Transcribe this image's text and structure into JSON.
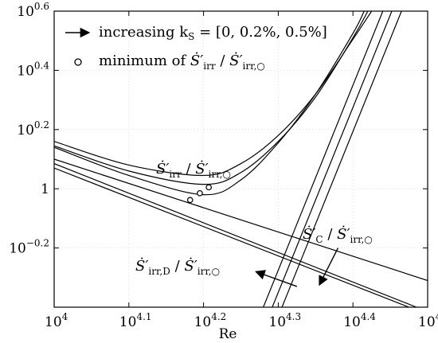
{
  "chart_data": {
    "type": "line",
    "x_scale": "log10",
    "y_scale": "log10",
    "xlim_log10": [
      4.0,
      4.5
    ],
    "ylim_log10": [
      -0.4,
      0.6
    ],
    "xlabel": "Re",
    "ylabel": "",
    "grid": "dotted, light",
    "x_ticks": [
      {
        "base": "10",
        "exp": "4",
        "log10": 4.0
      },
      {
        "base": "10",
        "exp": "4.1",
        "log10": 4.1
      },
      {
        "base": "10",
        "exp": "4.2",
        "log10": 4.2
      },
      {
        "base": "10",
        "exp": "4.3",
        "log10": 4.3
      },
      {
        "base": "10",
        "exp": "4.4",
        "log10": 4.4
      },
      {
        "base": "10",
        "exp": "4.5",
        "log10": 4.5
      }
    ],
    "y_ticks": [
      {
        "base": "10",
        "exp": "−0.2",
        "log10": -0.2
      },
      {
        "base": "1",
        "exp": "",
        "log10": 0.0
      },
      {
        "base": "10",
        "exp": "0.2",
        "log10": 0.2
      },
      {
        "base": "10",
        "exp": "0.4",
        "log10": 0.4
      },
      {
        "base": "10",
        "exp": "0.6",
        "log10": 0.6
      }
    ],
    "legend": {
      "placement": "top-left",
      "entries": [
        {
          "symbol": "arrow",
          "label_prefix": "increasing k",
          "label_sub": "S",
          "label_suffix": " = [0, 0.2%, 0.5%]"
        },
        {
          "symbol": "circle",
          "label_prefix": "minimum of ",
          "label_math": "Ṡ′irr / Ṡ′irr,○"
        }
      ]
    },
    "ks_values_percent": [
      0,
      0.2,
      0.5
    ],
    "series": [
      {
        "group": "Ṡ′irr / Ṡ′irr,○",
        "points": [
          {
            "x": 4.0,
            "y": 0.14
          },
          {
            "x": 4.1,
            "y": 0.045
          },
          {
            "x": 4.2,
            "y": -0.02
          },
          {
            "x": 4.25,
            "y": 0.03
          },
          {
            "x": 4.3,
            "y": 0.155
          },
          {
            "x": 4.35,
            "y": 0.32
          },
          {
            "x": 4.4,
            "y": 0.525
          },
          {
            "x": 4.415,
            "y": 0.6
          }
        ]
      },
      {
        "group": "Ṡ′irr / Ṡ′irr,○",
        "points": [
          {
            "x": 4.0,
            "y": 0.145
          },
          {
            "x": 4.1,
            "y": 0.06
          },
          {
            "x": 4.2,
            "y": 0.015
          },
          {
            "x": 4.25,
            "y": 0.055
          },
          {
            "x": 4.3,
            "y": 0.16
          },
          {
            "x": 4.35,
            "y": 0.31
          },
          {
            "x": 4.4,
            "y": 0.51
          },
          {
            "x": 4.42,
            "y": 0.6
          }
        ]
      },
      {
        "group": "Ṡ′irr / Ṡ′irr,○",
        "points": [
          {
            "x": 4.0,
            "y": 0.16
          },
          {
            "x": 4.1,
            "y": 0.08
          },
          {
            "x": 4.2,
            "y": 0.045
          },
          {
            "x": 4.25,
            "y": 0.085
          },
          {
            "x": 4.3,
            "y": 0.18
          },
          {
            "x": 4.35,
            "y": 0.32
          },
          {
            "x": 4.4,
            "y": 0.505
          },
          {
            "x": 4.425,
            "y": 0.6
          }
        ]
      },
      {
        "group": "Ṡ′C / Ṡ′irr,○",
        "points": [
          {
            "x": 4.28,
            "y": -0.4
          },
          {
            "x": 4.44,
            "y": 0.6
          }
        ]
      },
      {
        "group": "Ṡ′C / Ṡ′irr,○",
        "points": [
          {
            "x": 4.292,
            "y": -0.4
          },
          {
            "x": 4.452,
            "y": 0.6
          }
        ]
      },
      {
        "group": "Ṡ′C / Ṡ′irr,○",
        "points": [
          {
            "x": 4.305,
            "y": -0.4
          },
          {
            "x": 4.465,
            "y": 0.6
          }
        ]
      },
      {
        "group": "Ṡ′irr,D / Ṡ′irr,○",
        "points": [
          {
            "x": 4.0,
            "y": 0.1
          },
          {
            "x": 4.5,
            "y": -0.31
          }
        ]
      },
      {
        "group": "Ṡ′irr,D / Ṡ′irr,○",
        "points": [
          {
            "x": 4.0,
            "y": 0.085
          },
          {
            "x": 4.485,
            "y": -0.4
          }
        ]
      },
      {
        "group": "Ṡ′irr,D / Ṡ′irr,○",
        "points": [
          {
            "x": 4.0,
            "y": 0.07
          },
          {
            "x": 4.475,
            "y": -0.4
          }
        ]
      }
    ],
    "minima_markers": [
      {
        "x": 4.182,
        "y": -0.038
      },
      {
        "x": 4.195,
        "y": -0.015
      },
      {
        "x": 4.207,
        "y": 0.005
      }
    ],
    "annotations": [
      {
        "id": "irr",
        "math": "Ṡ′irr / Ṡ′irr,○",
        "pos": "above-curves-middle"
      },
      {
        "id": "c",
        "math": "Ṡ′C / Ṡ′irr,○",
        "pos": "right-lower"
      },
      {
        "id": "d",
        "math": "Ṡ′irr,D / Ṡ′irr,○",
        "pos": "left-lower"
      }
    ],
    "arrows": [
      {
        "id": "c-arrow",
        "from": {
          "x": 4.38,
          "y": -0.2
        },
        "to": {
          "x": 4.355,
          "y": -0.325
        }
      },
      {
        "id": "d-arrow",
        "from": {
          "x": 4.325,
          "y": -0.33
        },
        "to": {
          "x": 4.27,
          "y": -0.28
        }
      }
    ]
  }
}
